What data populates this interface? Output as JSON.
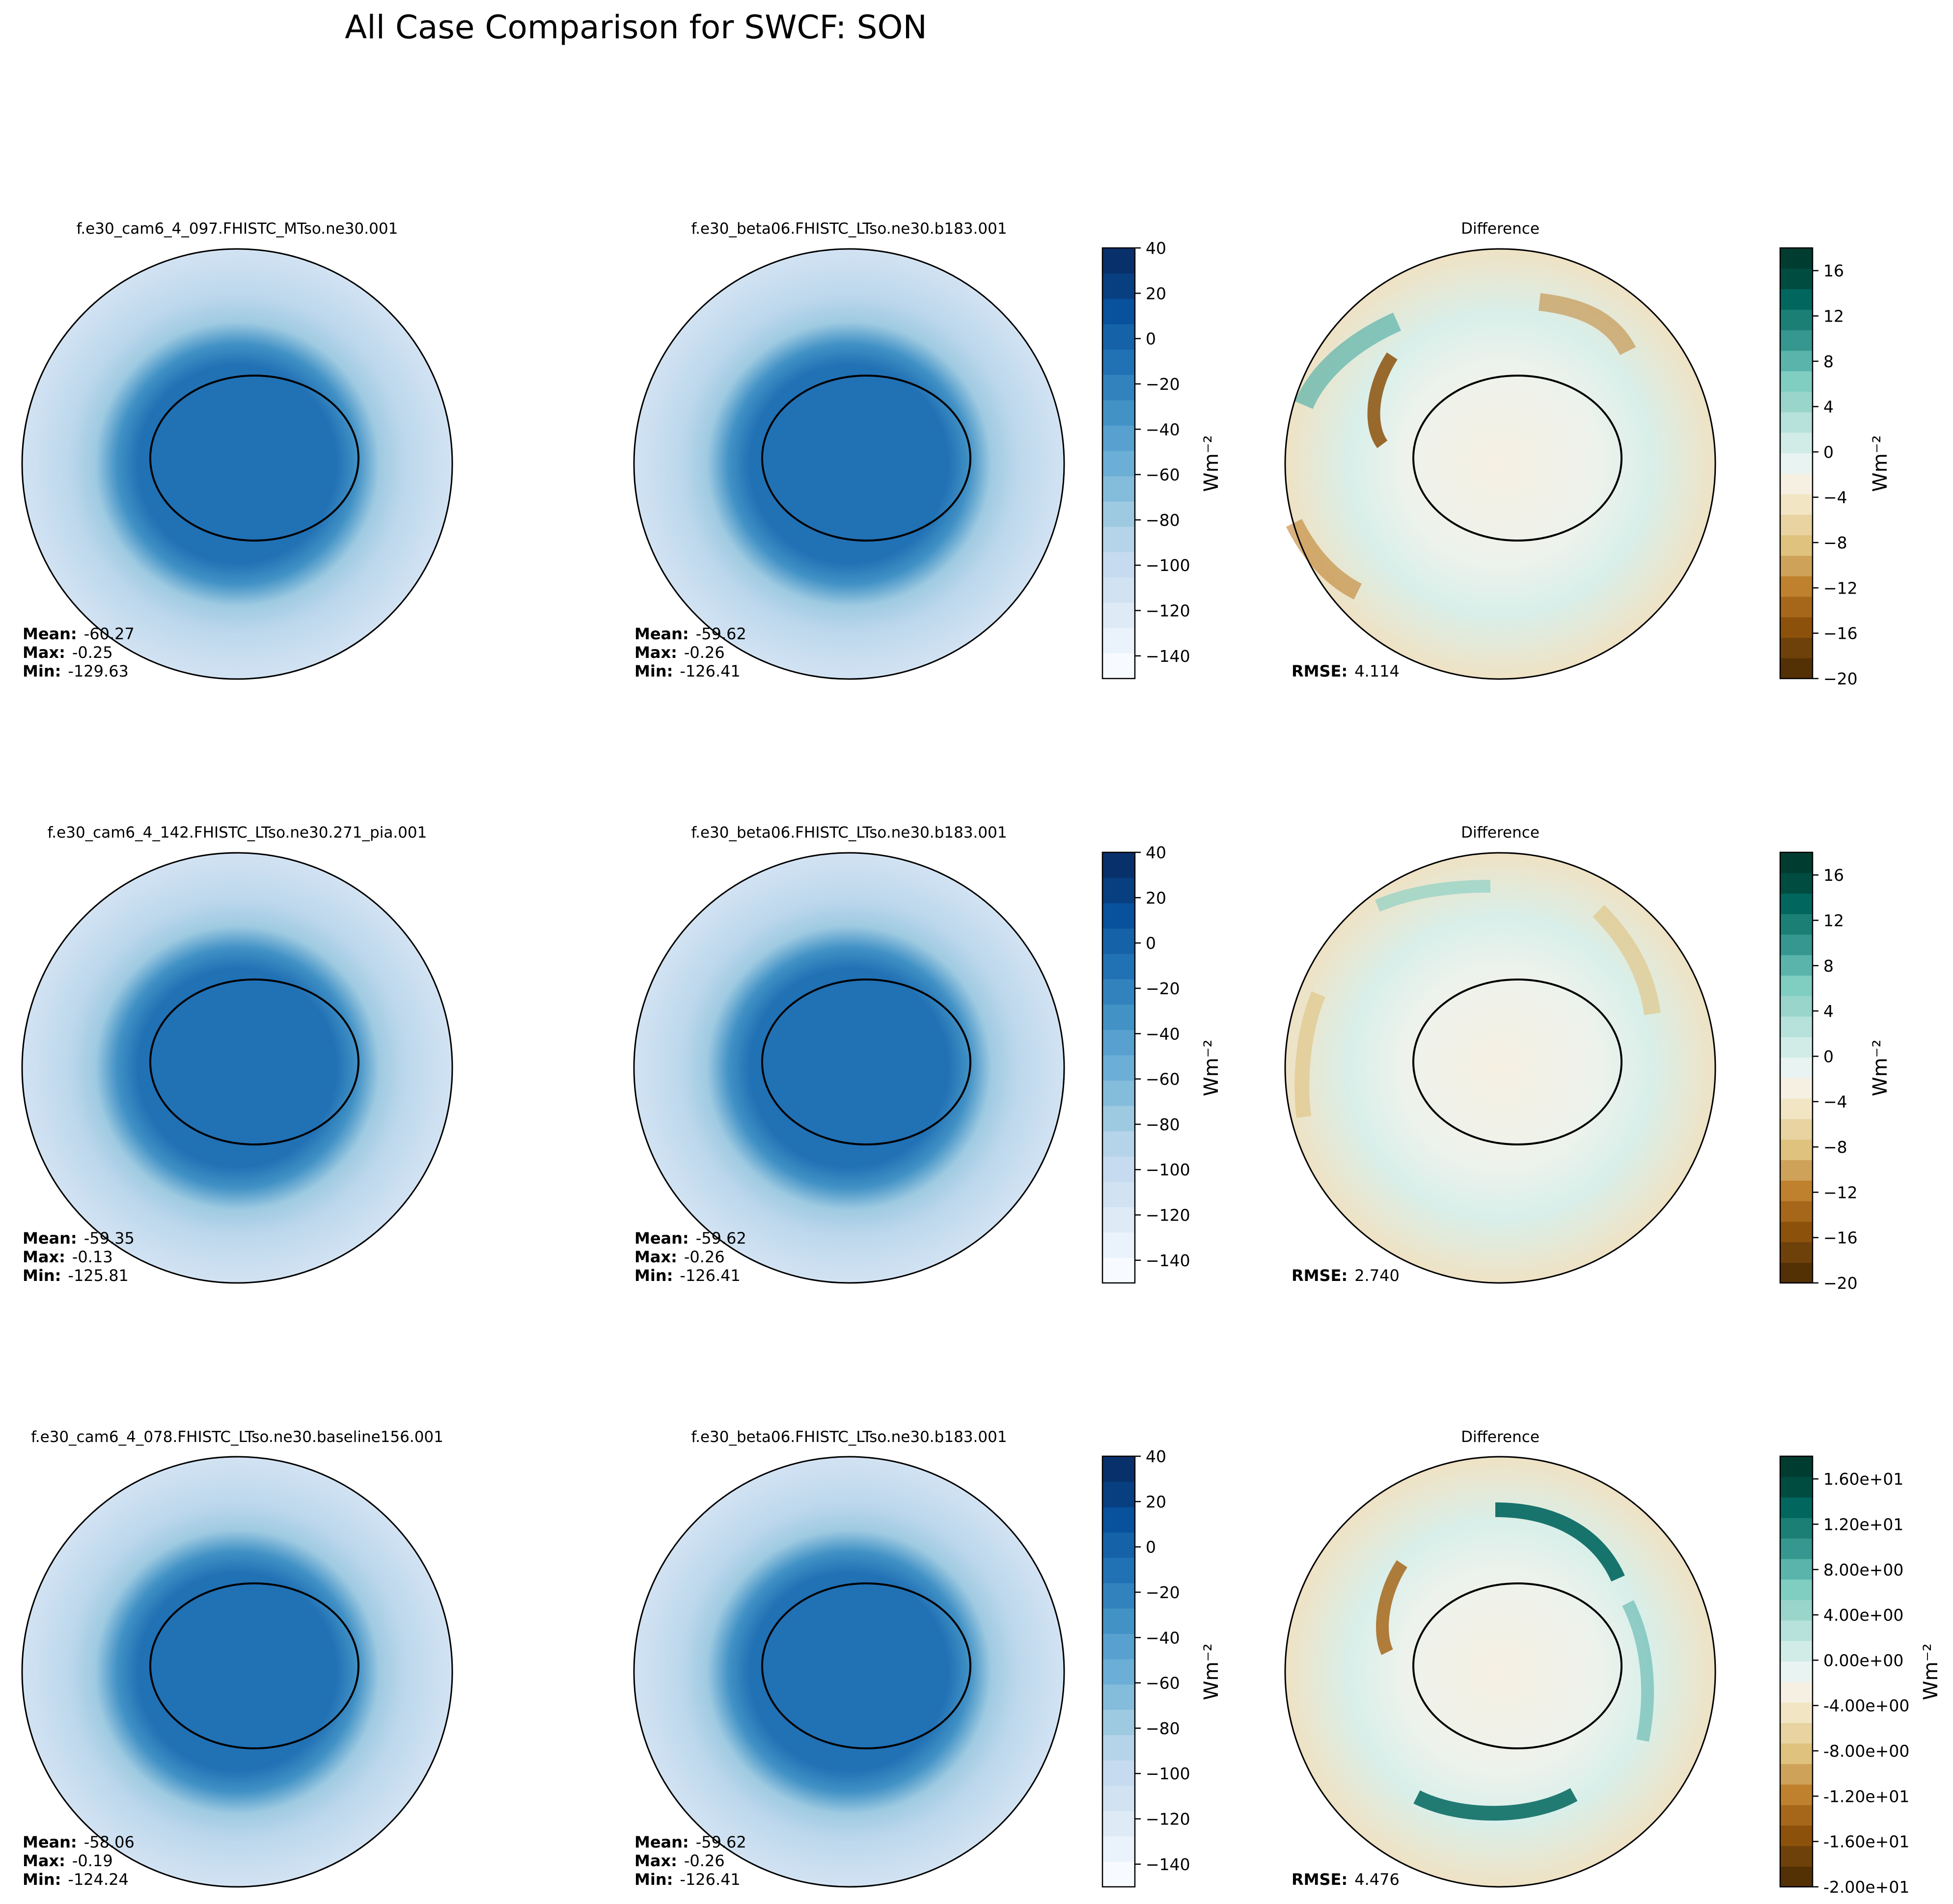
{
  "suptitle": "All Case Comparison for SWCF: SON",
  "chart_data": {
    "type": "polar-contour-grid",
    "projection": "south-polar-stereographic",
    "rows": [
      {
        "test": {
          "title": "f.e30_cam6_4_097.FHISTC_MTso.ne30.001",
          "mean": "-60.27",
          "max": "-0.25",
          "min": "-129.63"
        },
        "ref": {
          "title": "f.e30_beta06.FHISTC_LTso.ne30.b183.001",
          "mean": "-59.62",
          "max": "-0.26",
          "min": "-126.41"
        },
        "diff": {
          "title": "Difference",
          "rmse": "4.114"
        }
      },
      {
        "test": {
          "title": "f.e30_cam6_4_142.FHISTC_LTso.ne30.271_pia.001",
          "mean": "-59.35",
          "max": "-0.13",
          "min": "-125.81"
        },
        "ref": {
          "title": "f.e30_beta06.FHISTC_LTso.ne30.b183.001",
          "mean": "-59.62",
          "max": "-0.26",
          "min": "-126.41"
        },
        "diff": {
          "title": "Difference",
          "rmse": "2.740"
        }
      },
      {
        "test": {
          "title": "f.e30_cam6_4_078.FHISTC_LTso.ne30.baseline156.001",
          "mean": "-58.06",
          "max": "-0.19",
          "min": "-124.24"
        },
        "ref": {
          "title": "f.e30_beta06.FHISTC_LTso.ne30.b183.001",
          "mean": "-59.62",
          "max": "-0.26",
          "min": "-126.41"
        },
        "diff": {
          "title": "Difference",
          "rmse": "4.476"
        }
      }
    ],
    "stat_labels": {
      "mean": "Mean:",
      "max": "Max:",
      "min": "Min:",
      "rmse": "RMSE:"
    },
    "main_colorbar": {
      "range": [
        -150,
        40
      ],
      "ticks": [
        "40",
        "20",
        "0",
        "−20",
        "−40",
        "−60",
        "−80",
        "−100",
        "−120",
        "−140"
      ],
      "colors": [
        "#f7fbff",
        "#eaf3fb",
        "#deebf7",
        "#d1e3f3",
        "#c6dbef",
        "#b5d4e9",
        "#9ecae1",
        "#84bcdb",
        "#6baed6",
        "#57a0cf",
        "#4292c6",
        "#3282be",
        "#2171b5",
        "#1562a9",
        "#08519c",
        "#083f80",
        "#08306b"
      ],
      "label": "Wm⁻²"
    },
    "diff_colorbar": {
      "range": [
        -20,
        18
      ],
      "ticks_rows_1_2": [
        "16",
        "12",
        "8",
        "4",
        "0",
        "−4",
        "−8",
        "−12",
        "−16",
        "−20"
      ],
      "ticks_row_3": [
        "1.60e+01",
        "1.20e+01",
        "8.00e+00",
        "4.00e+00",
        "0.00e+00",
        "-4.00e+00",
        "-8.00e+00",
        "-1.20e+01",
        "-1.60e+01",
        "-2.00e+01"
      ],
      "colors": [
        "#543005",
        "#6f410a",
        "#8c510a",
        "#a6671b",
        "#bf812d",
        "#cfa25a",
        "#dfc27d",
        "#e8d3a1",
        "#f1e5c4",
        "#f5f0e2",
        "#e9f4f2",
        "#d1ece7",
        "#b6e2db",
        "#99d5cb",
        "#80cdc1",
        "#5ab4ab",
        "#35978f",
        "#1b7f76",
        "#01665e",
        "#004c41",
        "#003c30"
      ],
      "label": "Wm⁻²"
    }
  }
}
